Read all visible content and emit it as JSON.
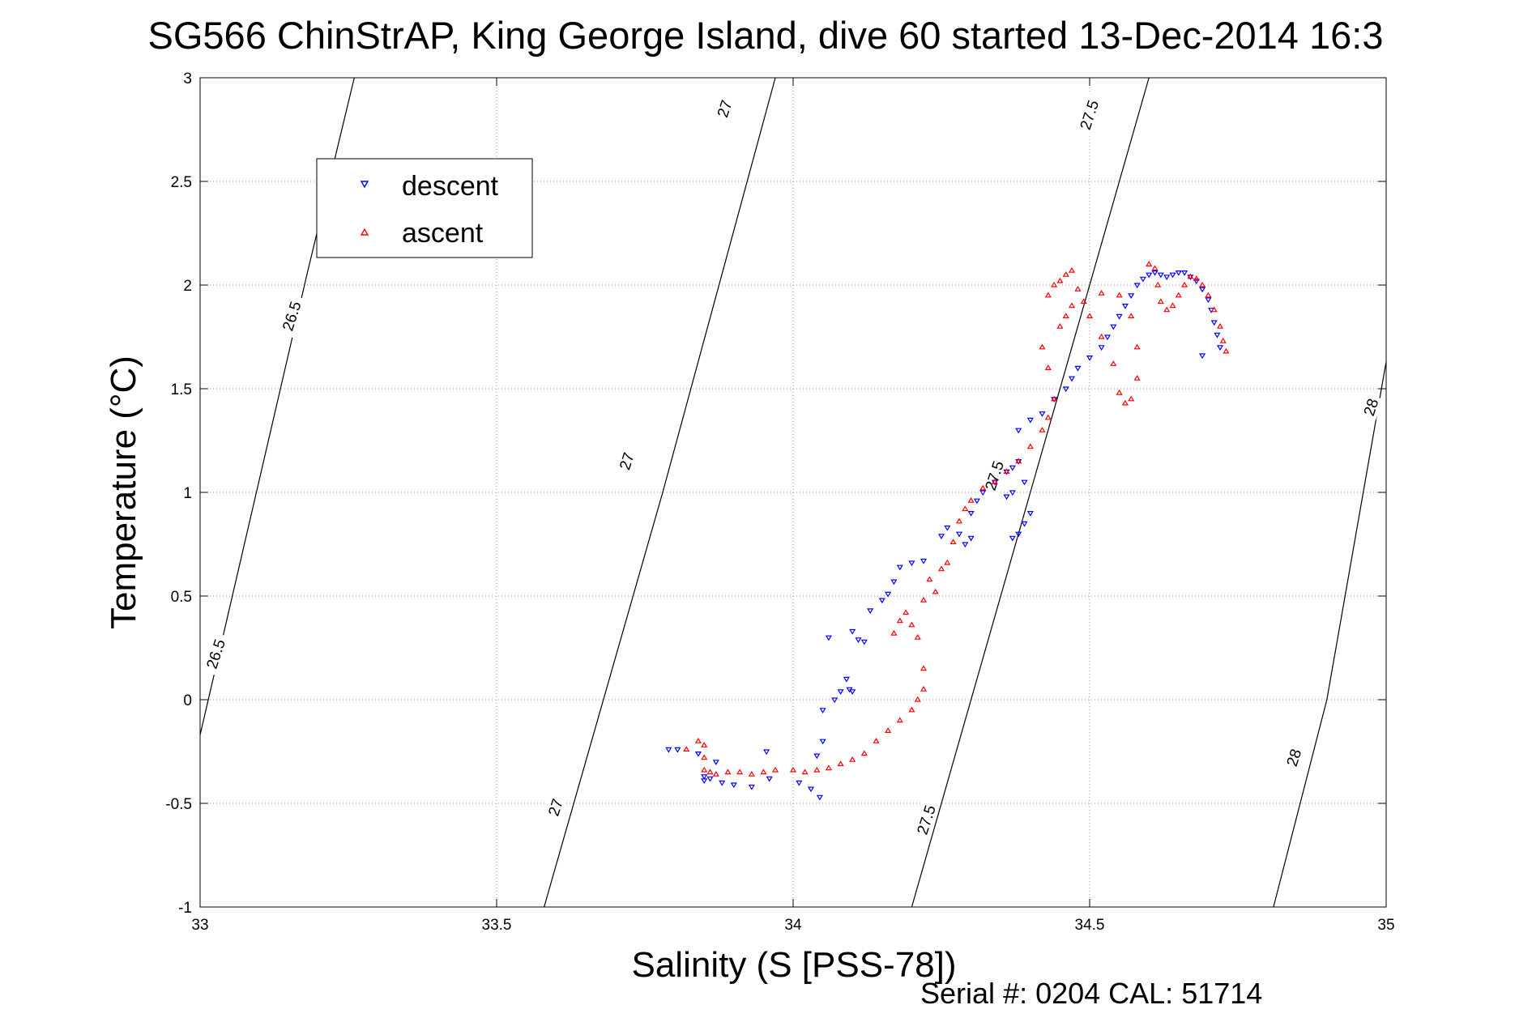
{
  "chart_data": {
    "type": "scatter",
    "title": "SG566 ChinStrAP, King George Island, dive 60 started 13-Dec-2014 16:3",
    "xlabel": "Salinity (S [PSS-78])",
    "ylabel": "Temperature (°C)",
    "xlim": [
      33,
      35
    ],
    "ylim": [
      -1,
      3
    ],
    "x_ticks": [
      "33",
      "33.5",
      "34",
      "34.5",
      "35"
    ],
    "y_ticks": [
      "3",
      "2.5",
      "2",
      "1.5",
      "1",
      "0.5",
      "0",
      "-0.5",
      "-1"
    ],
    "grid": true,
    "legend_position": "top-left",
    "footer": "Serial #: 0204  CAL: 51714",
    "colors": {
      "descent": "#0000ff",
      "ascent": "#ff0000",
      "isopycnal": "#000000"
    },
    "isopycnals": [
      {
        "label": "26.5",
        "points": [
          [
            33.0,
            -0.17
          ],
          [
            33.18,
            2.05
          ],
          [
            33.26,
            3.0
          ]
        ]
      },
      {
        "label": "27",
        "points": [
          [
            33.58,
            -1.0
          ],
          [
            33.78,
            1.0
          ],
          [
            33.97,
            3.0
          ]
        ]
      },
      {
        "label": "27.5",
        "points": [
          [
            34.2,
            -1.0
          ],
          [
            34.4,
            1.0
          ],
          [
            34.6,
            3.0
          ]
        ]
      },
      {
        "label": "28",
        "points": [
          [
            34.81,
            -1.0
          ],
          [
            34.9,
            0.0
          ],
          [
            35.0,
            1.63
          ]
        ]
      }
    ],
    "isopycnal_labels": [
      {
        "text": "26.5",
        "x": 33.155,
        "y": 1.85
      },
      {
        "text": "26.5",
        "x": 33.027,
        "y": 0.22
      },
      {
        "text": "27",
        "x": 33.885,
        "y": 2.85
      },
      {
        "text": "27",
        "x": 33.72,
        "y": 1.15
      },
      {
        "text": "27",
        "x": 33.6,
        "y": -0.52
      },
      {
        "text": "27.5",
        "x": 34.5,
        "y": 2.82
      },
      {
        "text": "27.5",
        "x": 34.34,
        "y": 1.08
      },
      {
        "text": "27.5",
        "x": 34.225,
        "y": -0.58
      },
      {
        "text": "28",
        "x": 34.975,
        "y": 1.41
      },
      {
        "text": "28",
        "x": 34.845,
        "y": -0.28
      }
    ],
    "series": [
      {
        "name": "descent",
        "marker": "triangle-down",
        "points": [
          [
            33.79,
            -0.24
          ],
          [
            33.805,
            -0.24
          ],
          [
            33.84,
            -0.26
          ],
          [
            33.85,
            -0.37
          ],
          [
            33.85,
            -0.39
          ],
          [
            33.86,
            -0.38
          ],
          [
            33.87,
            -0.3
          ],
          [
            33.88,
            -0.4
          ],
          [
            33.9,
            -0.41
          ],
          [
            33.93,
            -0.42
          ],
          [
            33.955,
            -0.25
          ],
          [
            33.96,
            -0.38
          ],
          [
            34.01,
            -0.4
          ],
          [
            34.03,
            -0.43
          ],
          [
            34.045,
            -0.47
          ],
          [
            34.04,
            -0.27
          ],
          [
            34.05,
            -0.2
          ],
          [
            34.05,
            -0.05
          ],
          [
            34.07,
            0.0
          ],
          [
            34.08,
            0.04
          ],
          [
            34.09,
            0.1
          ],
          [
            34.095,
            0.05
          ],
          [
            34.1,
            0.04
          ],
          [
            34.06,
            0.3
          ],
          [
            34.1,
            0.33
          ],
          [
            34.11,
            0.29
          ],
          [
            34.12,
            0.28
          ],
          [
            34.13,
            0.43
          ],
          [
            34.15,
            0.48
          ],
          [
            34.16,
            0.51
          ],
          [
            34.17,
            0.57
          ],
          [
            34.18,
            0.64
          ],
          [
            34.2,
            0.66
          ],
          [
            34.22,
            0.67
          ],
          [
            34.25,
            0.79
          ],
          [
            34.26,
            0.83
          ],
          [
            34.28,
            0.8
          ],
          [
            34.29,
            0.75
          ],
          [
            34.3,
            0.78
          ],
          [
            34.3,
            0.9
          ],
          [
            34.31,
            0.96
          ],
          [
            34.32,
            1.0
          ],
          [
            34.34,
            1.05
          ],
          [
            34.36,
            1.1
          ],
          [
            34.37,
            1.12
          ],
          [
            34.38,
            1.15
          ],
          [
            34.37,
            0.78
          ],
          [
            34.38,
            0.8
          ],
          [
            34.39,
            0.85
          ],
          [
            34.4,
            0.9
          ],
          [
            34.36,
            0.98
          ],
          [
            34.37,
            1.0
          ],
          [
            34.39,
            1.05
          ],
          [
            34.38,
            1.3
          ],
          [
            34.4,
            1.35
          ],
          [
            34.42,
            1.38
          ],
          [
            34.44,
            1.45
          ],
          [
            34.46,
            1.5
          ],
          [
            34.47,
            1.55
          ],
          [
            34.48,
            1.6
          ],
          [
            34.5,
            1.65
          ],
          [
            34.52,
            1.7
          ],
          [
            34.53,
            1.75
          ],
          [
            34.54,
            1.8
          ],
          [
            34.55,
            1.85
          ],
          [
            34.56,
            1.9
          ],
          [
            34.57,
            1.95
          ],
          [
            34.58,
            2.0
          ],
          [
            34.59,
            2.03
          ],
          [
            34.6,
            2.05
          ],
          [
            34.61,
            2.06
          ],
          [
            34.62,
            2.05
          ],
          [
            34.63,
            2.04
          ],
          [
            34.64,
            2.05
          ],
          [
            34.65,
            2.06
          ],
          [
            34.66,
            2.06
          ],
          [
            34.67,
            2.04
          ],
          [
            34.68,
            2.02
          ],
          [
            34.69,
            1.98
          ],
          [
            34.7,
            1.93
          ],
          [
            34.705,
            1.88
          ],
          [
            34.71,
            1.82
          ],
          [
            34.715,
            1.76
          ],
          [
            34.72,
            1.7
          ],
          [
            34.69,
            1.66
          ]
        ]
      },
      {
        "name": "ascent",
        "marker": "triangle-up",
        "points": [
          [
            33.82,
            -0.24
          ],
          [
            33.84,
            -0.2
          ],
          [
            33.85,
            -0.22
          ],
          [
            33.85,
            -0.28
          ],
          [
            33.85,
            -0.34
          ],
          [
            33.86,
            -0.35
          ],
          [
            33.87,
            -0.36
          ],
          [
            33.89,
            -0.35
          ],
          [
            33.91,
            -0.35
          ],
          [
            33.93,
            -0.36
          ],
          [
            33.95,
            -0.35
          ],
          [
            33.97,
            -0.34
          ],
          [
            34.0,
            -0.34
          ],
          [
            34.02,
            -0.35
          ],
          [
            34.04,
            -0.34
          ],
          [
            34.06,
            -0.33
          ],
          [
            34.08,
            -0.31
          ],
          [
            34.1,
            -0.29
          ],
          [
            34.12,
            -0.26
          ],
          [
            34.14,
            -0.2
          ],
          [
            34.16,
            -0.15
          ],
          [
            34.18,
            -0.1
          ],
          [
            34.2,
            -0.05
          ],
          [
            34.21,
            0.0
          ],
          [
            34.22,
            0.05
          ],
          [
            34.22,
            0.15
          ],
          [
            34.21,
            0.3
          ],
          [
            34.2,
            0.36
          ],
          [
            34.18,
            0.38
          ],
          [
            34.17,
            0.32
          ],
          [
            34.19,
            0.42
          ],
          [
            34.22,
            0.48
          ],
          [
            34.24,
            0.52
          ],
          [
            34.23,
            0.58
          ],
          [
            34.25,
            0.63
          ],
          [
            34.26,
            0.66
          ],
          [
            34.27,
            0.76
          ],
          [
            34.28,
            0.86
          ],
          [
            34.29,
            0.92
          ],
          [
            34.3,
            0.96
          ],
          [
            34.32,
            1.02
          ],
          [
            34.34,
            1.05
          ],
          [
            34.36,
            1.1
          ],
          [
            34.38,
            1.15
          ],
          [
            34.4,
            1.22
          ],
          [
            34.42,
            1.3
          ],
          [
            34.43,
            1.36
          ],
          [
            34.44,
            1.45
          ],
          [
            34.43,
            1.6
          ],
          [
            34.42,
            1.7
          ],
          [
            34.45,
            1.8
          ],
          [
            34.46,
            1.85
          ],
          [
            34.47,
            1.9
          ],
          [
            34.43,
            1.95
          ],
          [
            34.44,
            2.0
          ],
          [
            34.45,
            2.02
          ],
          [
            34.46,
            2.05
          ],
          [
            34.47,
            2.07
          ],
          [
            34.48,
            1.98
          ],
          [
            34.49,
            1.92
          ],
          [
            34.5,
            1.85
          ],
          [
            34.52,
            1.75
          ],
          [
            34.54,
            1.62
          ],
          [
            34.55,
            1.48
          ],
          [
            34.56,
            1.43
          ],
          [
            34.57,
            1.45
          ],
          [
            34.58,
            1.55
          ],
          [
            34.58,
            1.7
          ],
          [
            34.57,
            1.85
          ],
          [
            34.55,
            1.95
          ],
          [
            34.52,
            1.96
          ],
          [
            34.6,
            2.1
          ],
          [
            34.61,
            2.08
          ],
          [
            34.615,
            2.0
          ],
          [
            34.62,
            1.92
          ],
          [
            34.63,
            1.88
          ],
          [
            34.64,
            1.9
          ],
          [
            34.65,
            1.95
          ],
          [
            34.66,
            2.0
          ],
          [
            34.67,
            2.04
          ],
          [
            34.68,
            2.03
          ],
          [
            34.69,
            2.0
          ],
          [
            34.7,
            1.95
          ],
          [
            34.71,
            1.88
          ],
          [
            34.72,
            1.8
          ],
          [
            34.725,
            1.73
          ],
          [
            34.73,
            1.68
          ]
        ]
      }
    ]
  }
}
